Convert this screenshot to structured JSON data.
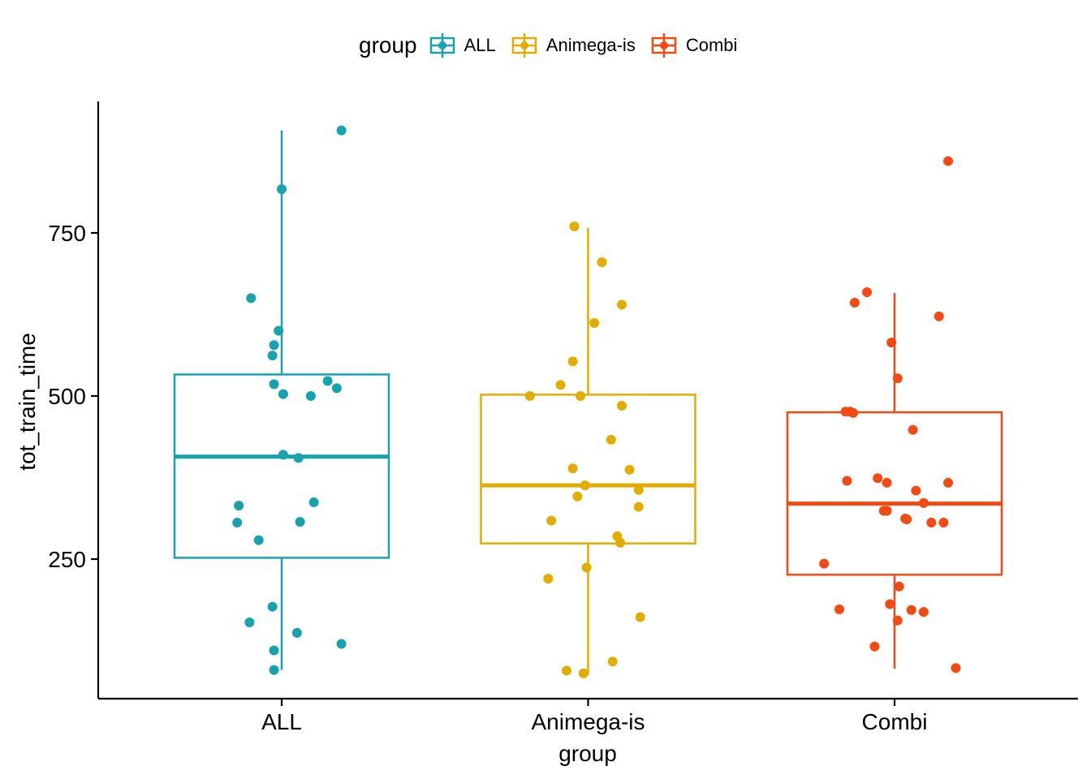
{
  "legend": {
    "title": "group",
    "items": [
      {
        "label": "ALL",
        "color": "#17A2AE"
      },
      {
        "label": "Animega-is",
        "color": "#E2AC00"
      },
      {
        "label": "Combi",
        "color": "#F24A12"
      }
    ]
  },
  "chart_data": {
    "type": "box",
    "xlabel": "group",
    "ylabel": "tot_train_time",
    "categories": [
      "ALL",
      "Animega-is",
      "Combi"
    ],
    "yticks": [
      250,
      500,
      750
    ],
    "ylim": [
      40,
      935
    ],
    "grid": false,
    "legend_position": "top",
    "series": [
      {
        "name": "ALL",
        "color": "#17A2AE",
        "box": {
          "q1": 252,
          "median": 407,
          "q3": 533,
          "whisker_low": 80,
          "whisker_high": 907
        },
        "points": [
          {
            "x": 1.195,
            "y": 907
          },
          {
            "x": 1.0,
            "y": 817
          },
          {
            "x": 0.9,
            "y": 650
          },
          {
            "x": 0.99,
            "y": 600
          },
          {
            "x": 0.975,
            "y": 578
          },
          {
            "x": 0.97,
            "y": 562
          },
          {
            "x": 1.15,
            "y": 523
          },
          {
            "x": 0.975,
            "y": 518
          },
          {
            "x": 1.18,
            "y": 512
          },
          {
            "x": 1.005,
            "y": 503
          },
          {
            "x": 1.095,
            "y": 500
          },
          {
            "x": 1.005,
            "y": 410
          },
          {
            "x": 1.055,
            "y": 405
          },
          {
            "x": 1.105,
            "y": 337
          },
          {
            "x": 0.86,
            "y": 332
          },
          {
            "x": 1.06,
            "y": 307
          },
          {
            "x": 0.855,
            "y": 306
          },
          {
            "x": 0.925,
            "y": 279
          },
          {
            "x": 0.97,
            "y": 177
          },
          {
            "x": 0.895,
            "y": 153
          },
          {
            "x": 1.05,
            "y": 137
          },
          {
            "x": 1.195,
            "y": 120
          },
          {
            "x": 0.975,
            "y": 110
          },
          {
            "x": 0.975,
            "y": 80
          }
        ]
      },
      {
        "name": "Animega-is",
        "color": "#E2AC00",
        "box": {
          "q1": 274,
          "median": 363,
          "q3": 502,
          "whisker_low": 73,
          "whisker_high": 758
        },
        "points": [
          {
            "x": 1.955,
            "y": 760
          },
          {
            "x": 2.045,
            "y": 705
          },
          {
            "x": 2.11,
            "y": 640
          },
          {
            "x": 2.02,
            "y": 612
          },
          {
            "x": 1.95,
            "y": 553
          },
          {
            "x": 1.91,
            "y": 517
          },
          {
            "x": 1.81,
            "y": 500
          },
          {
            "x": 1.975,
            "y": 500
          },
          {
            "x": 2.11,
            "y": 485
          },
          {
            "x": 2.075,
            "y": 433
          },
          {
            "x": 1.95,
            "y": 389
          },
          {
            "x": 2.135,
            "y": 387
          },
          {
            "x": 1.99,
            "y": 363
          },
          {
            "x": 2.165,
            "y": 356
          },
          {
            "x": 1.965,
            "y": 346
          },
          {
            "x": 2.165,
            "y": 330
          },
          {
            "x": 1.88,
            "y": 309
          },
          {
            "x": 2.095,
            "y": 285
          },
          {
            "x": 2.105,
            "y": 275
          },
          {
            "x": 1.995,
            "y": 237
          },
          {
            "x": 1.87,
            "y": 220
          },
          {
            "x": 2.17,
            "y": 161
          },
          {
            "x": 2.08,
            "y": 93
          },
          {
            "x": 1.93,
            "y": 79
          },
          {
            "x": 1.985,
            "y": 75
          }
        ]
      },
      {
        "name": "Combi",
        "color": "#F24A12",
        "box": {
          "q1": 226,
          "median": 335,
          "q3": 475,
          "whisker_low": 82,
          "whisker_high": 658
        },
        "points": [
          {
            "x": 3.175,
            "y": 860
          },
          {
            "x": 2.91,
            "y": 659
          },
          {
            "x": 2.87,
            "y": 643
          },
          {
            "x": 3.145,
            "y": 622
          },
          {
            "x": 2.99,
            "y": 582
          },
          {
            "x": 3.01,
            "y": 527
          },
          {
            "x": 2.84,
            "y": 476
          },
          {
            "x": 2.855,
            "y": 476
          },
          {
            "x": 2.865,
            "y": 474
          },
          {
            "x": 3.06,
            "y": 448
          },
          {
            "x": 2.945,
            "y": 374
          },
          {
            "x": 2.845,
            "y": 370
          },
          {
            "x": 3.175,
            "y": 367
          },
          {
            "x": 2.975,
            "y": 367
          },
          {
            "x": 3.07,
            "y": 355
          },
          {
            "x": 3.095,
            "y": 336
          },
          {
            "x": 2.965,
            "y": 324
          },
          {
            "x": 2.975,
            "y": 324
          },
          {
            "x": 3.035,
            "y": 312
          },
          {
            "x": 3.04,
            "y": 311
          },
          {
            "x": 3.12,
            "y": 306
          },
          {
            "x": 3.16,
            "y": 306
          },
          {
            "x": 2.77,
            "y": 243
          },
          {
            "x": 3.015,
            "y": 208
          },
          {
            "x": 2.985,
            "y": 181
          },
          {
            "x": 2.82,
            "y": 173
          },
          {
            "x": 3.055,
            "y": 172
          },
          {
            "x": 3.095,
            "y": 169
          },
          {
            "x": 3.01,
            "y": 156
          },
          {
            "x": 2.935,
            "y": 116
          },
          {
            "x": 3.2,
            "y": 83
          }
        ]
      }
    ]
  }
}
